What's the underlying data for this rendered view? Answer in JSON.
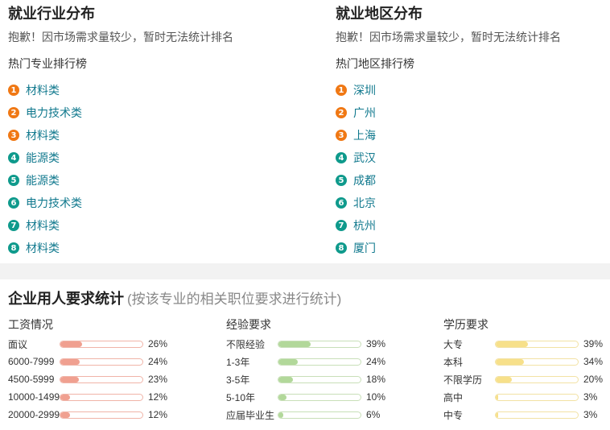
{
  "industry": {
    "title": "就业行业分布",
    "notice": "抱歉！因市场需求量较少，暂时无法统计排名",
    "list_title": "热门专业排行榜",
    "items": [
      {
        "num": "1",
        "label": "材料类"
      },
      {
        "num": "2",
        "label": "电力技术类"
      },
      {
        "num": "3",
        "label": "材料类"
      },
      {
        "num": "4",
        "label": "能源类"
      },
      {
        "num": "5",
        "label": "能源类"
      },
      {
        "num": "6",
        "label": "电力技术类"
      },
      {
        "num": "7",
        "label": "材料类"
      },
      {
        "num": "8",
        "label": "材料类"
      }
    ]
  },
  "region": {
    "title": "就业地区分布",
    "notice": "抱歉！因市场需求量较少，暂时无法统计排名",
    "list_title": "热门地区排行榜",
    "items": [
      {
        "num": "1",
        "label": "深圳"
      },
      {
        "num": "2",
        "label": "广州"
      },
      {
        "num": "3",
        "label": "上海"
      },
      {
        "num": "4",
        "label": "武汉"
      },
      {
        "num": "5",
        "label": "成都"
      },
      {
        "num": "6",
        "label": "北京"
      },
      {
        "num": "7",
        "label": "杭州"
      },
      {
        "num": "8",
        "label": "厦门"
      }
    ]
  },
  "requirements": {
    "title": "企业用人要求统计",
    "subtitle": "(按该专业的相关职位要求进行统计)",
    "salary": {
      "title": "工资情况",
      "color": "#f0a090",
      "rows": [
        {
          "label": "面议",
          "pct": "26%",
          "value": 26
        },
        {
          "label": "6000-7999",
          "pct": "24%",
          "value": 24
        },
        {
          "label": "4500-5999",
          "pct": "23%",
          "value": 23
        },
        {
          "label": "10000-14999",
          "pct": "12%",
          "value": 12
        },
        {
          "label": "20000-29999",
          "pct": "12%",
          "value": 12
        }
      ]
    },
    "experience": {
      "title": "经验要求",
      "color": "#b2d89a",
      "rows": [
        {
          "label": "不限经验",
          "pct": "39%",
          "value": 39
        },
        {
          "label": "1-3年",
          "pct": "24%",
          "value": 24
        },
        {
          "label": "3-5年",
          "pct": "18%",
          "value": 18
        },
        {
          "label": "5-10年",
          "pct": "10%",
          "value": 10
        },
        {
          "label": "应届毕业生",
          "pct": "6%",
          "value": 6
        }
      ]
    },
    "education": {
      "title": "学历要求",
      "color": "#f7e08a",
      "rows": [
        {
          "label": "大专",
          "pct": "39%",
          "value": 39
        },
        {
          "label": "本科",
          "pct": "34%",
          "value": 34
        },
        {
          "label": "不限学历",
          "pct": "20%",
          "value": 20
        },
        {
          "label": "高中",
          "pct": "3%",
          "value": 3
        },
        {
          "label": "中专",
          "pct": "3%",
          "value": 3
        }
      ]
    }
  }
}
